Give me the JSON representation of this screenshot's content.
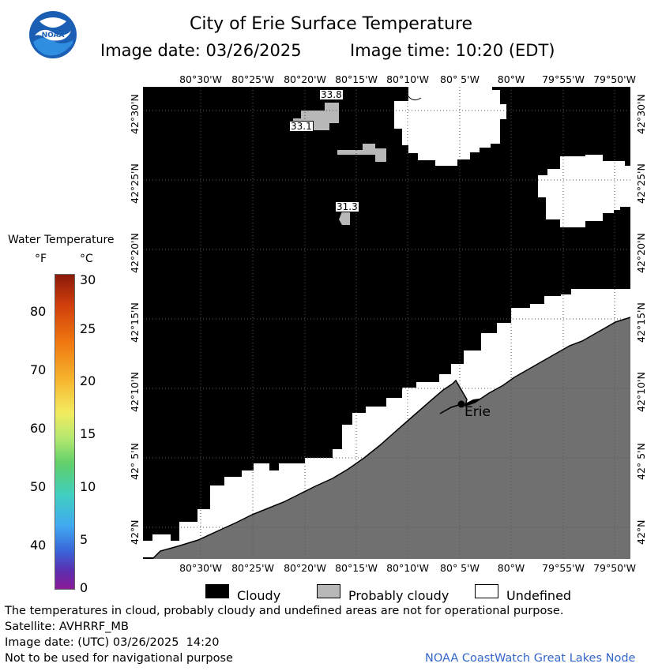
{
  "header": {
    "title": "City of Erie Surface Temperature",
    "image_date_text": "Image date: 03/26/2025",
    "image_time_text": "Image time: 10:20 (EDT)",
    "logo_text": "NOAA"
  },
  "map": {
    "lon_labels_top": [
      "80°30'W",
      "80°25'W",
      "80°20'W",
      "80°15'W",
      "80°10'W",
      "80° 5'W",
      "80°W",
      "79°55'W",
      "79°50'W"
    ],
    "lon_labels_bottom": [
      "80°30'W",
      "80°25'W",
      "80°20'W",
      "80°15'W",
      "80°10'W",
      "80° 5'W",
      "80°W",
      "79°55'W",
      "79°50'W"
    ],
    "lat_labels_left": [
      "42°30'N",
      "42°25'N",
      "42°20'N",
      "42°15'N",
      "42°10'N",
      "42° 5'N",
      "42°N"
    ],
    "lat_labels_right": [
      "42°30'N",
      "42°25'N",
      "42°20'N",
      "42°15'N",
      "42°10'N",
      "42° 5'N",
      "42°N"
    ],
    "temp_readings": [
      "33.8",
      "33.1",
      "31.3"
    ],
    "city_label": "Erie",
    "colors": {
      "cloudy": "#000000",
      "probably_cloudy": "#b8b8b8",
      "undefined": "#ffffff",
      "land": "#707070"
    }
  },
  "colorbar": {
    "title": "Water Temperature",
    "unit_f": "°F",
    "unit_c": "°C",
    "f_ticks": [
      "80",
      "70",
      "60",
      "50",
      "40"
    ],
    "c_ticks": [
      "30",
      "25",
      "20",
      "15",
      "10",
      "5",
      "0"
    ]
  },
  "legend": {
    "cloudy": "Cloudy",
    "probably_cloudy": "Probably cloudy",
    "undefined": "Undefined"
  },
  "footer": {
    "line1": "The temperatures in cloud, probably cloudy and undefined areas are not for operational purpose.",
    "line2": "Satellite: AVHRRF_MB",
    "line3": "Image date: (UTC) 03/26/2025  14:20",
    "line4": "Not to be used for navigational purpose",
    "credit": "NOAA CoastWatch Great Lakes Node"
  }
}
